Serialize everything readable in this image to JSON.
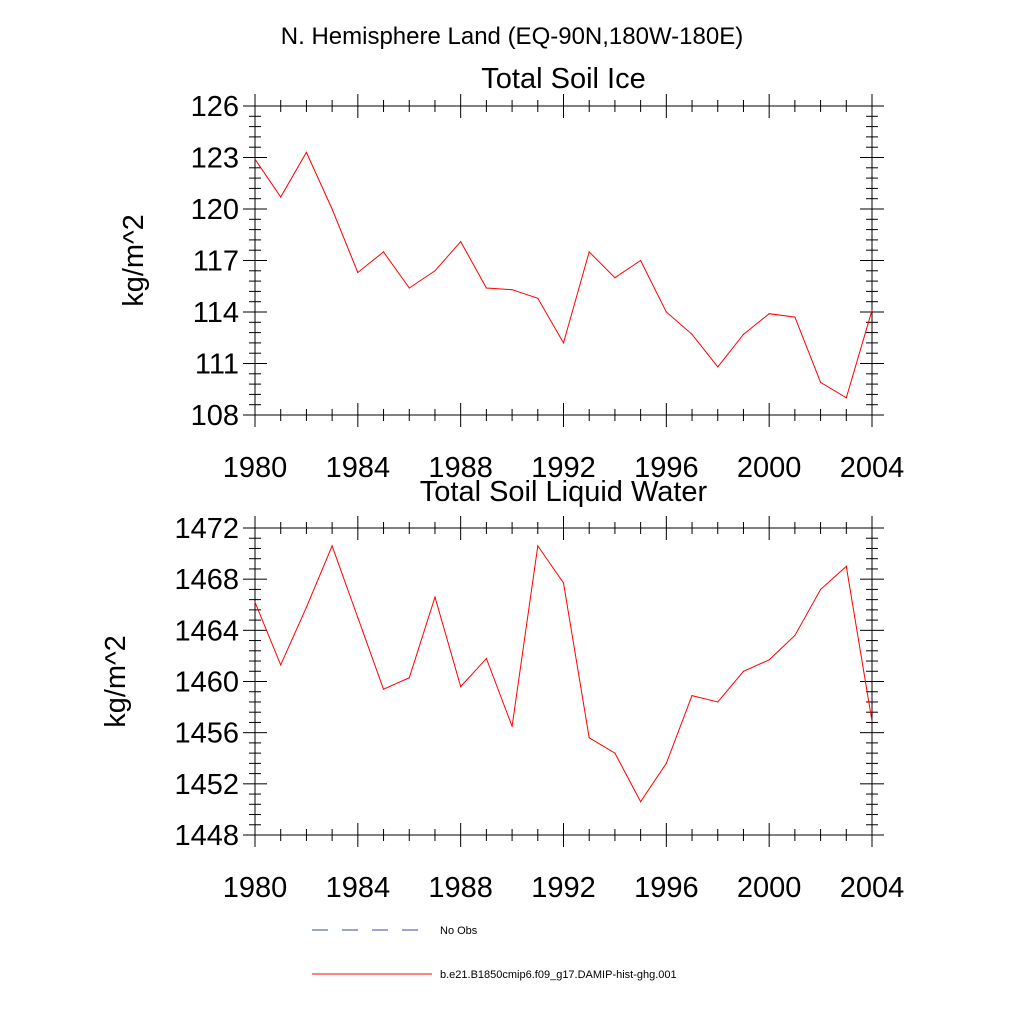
{
  "figure": {
    "header": "N. Hemisphere Land (EQ-90N,180W-180E)"
  },
  "chart_data": [
    {
      "type": "line",
      "title": "Total Soil Ice",
      "xlabel": "",
      "ylabel": "kg/m^2",
      "xlim": [
        1980,
        2004
      ],
      "ylim": [
        108,
        126
      ],
      "x_ticks": [
        "1980",
        "1984",
        "1988",
        "1992",
        "1996",
        "2000",
        "2004"
      ],
      "y_ticks": [
        "108",
        "111",
        "114",
        "117",
        "120",
        "123",
        "126"
      ],
      "grid": false,
      "series": [
        {
          "name": "b.e21.B1850cmip6.f09_g17.DAMIP-hist-ghg.001",
          "color": "#ff0000",
          "x": [
            1980,
            1981,
            1982,
            1983,
            1984,
            1985,
            1986,
            1987,
            1988,
            1989,
            1990,
            1991,
            1992,
            1993,
            1994,
            1995,
            1996,
            1997,
            1998,
            1999,
            2000,
            2001,
            2002,
            2003,
            2004
          ],
          "y": [
            122.9,
            120.7,
            123.3,
            120.0,
            116.3,
            117.5,
            115.4,
            116.4,
            118.1,
            115.4,
            115.3,
            114.8,
            112.2,
            117.5,
            116.0,
            117.0,
            114.0,
            112.7,
            110.8,
            112.7,
            113.9,
            113.7,
            109.9,
            109.0,
            114.1
          ]
        }
      ]
    },
    {
      "type": "line",
      "title": "Total Soil Liquid Water",
      "xlabel": "",
      "ylabel": "kg/m^2",
      "xlim": [
        1980,
        2004
      ],
      "ylim": [
        1448,
        1472
      ],
      "x_ticks": [
        "1980",
        "1984",
        "1988",
        "1992",
        "1996",
        "2000",
        "2004"
      ],
      "y_ticks": [
        "1448",
        "1452",
        "1456",
        "1460",
        "1464",
        "1468",
        "1472"
      ],
      "grid": false,
      "series": [
        {
          "name": "b.e21.B1850cmip6.f09_g17.DAMIP-hist-ghg.001",
          "color": "#ff0000",
          "x": [
            1980,
            1981,
            1982,
            1983,
            1984,
            1985,
            1986,
            1987,
            1988,
            1989,
            1990,
            1991,
            1992,
            1993,
            1994,
            1995,
            1996,
            1997,
            1998,
            1999,
            2000,
            2001,
            2002,
            2003,
            2004
          ],
          "y": [
            1466.2,
            1461.3,
            1465.8,
            1470.6,
            1465.0,
            1459.4,
            1460.3,
            1466.6,
            1459.6,
            1461.8,
            1456.5,
            1470.6,
            1467.7,
            1455.6,
            1454.4,
            1450.6,
            1453.6,
            1458.9,
            1458.4,
            1460.8,
            1461.7,
            1463.6,
            1467.2,
            1469.0,
            1456.9
          ]
        }
      ]
    }
  ],
  "legend": {
    "placement": "bottom",
    "items": [
      {
        "label": "No Obs",
        "color": "#3b4aa0",
        "style": "dashed"
      },
      {
        "label": "b.e21.B1850cmip6.f09_g17.DAMIP-hist-ghg.001",
        "color": "#ff0000",
        "style": "solid"
      }
    ]
  }
}
